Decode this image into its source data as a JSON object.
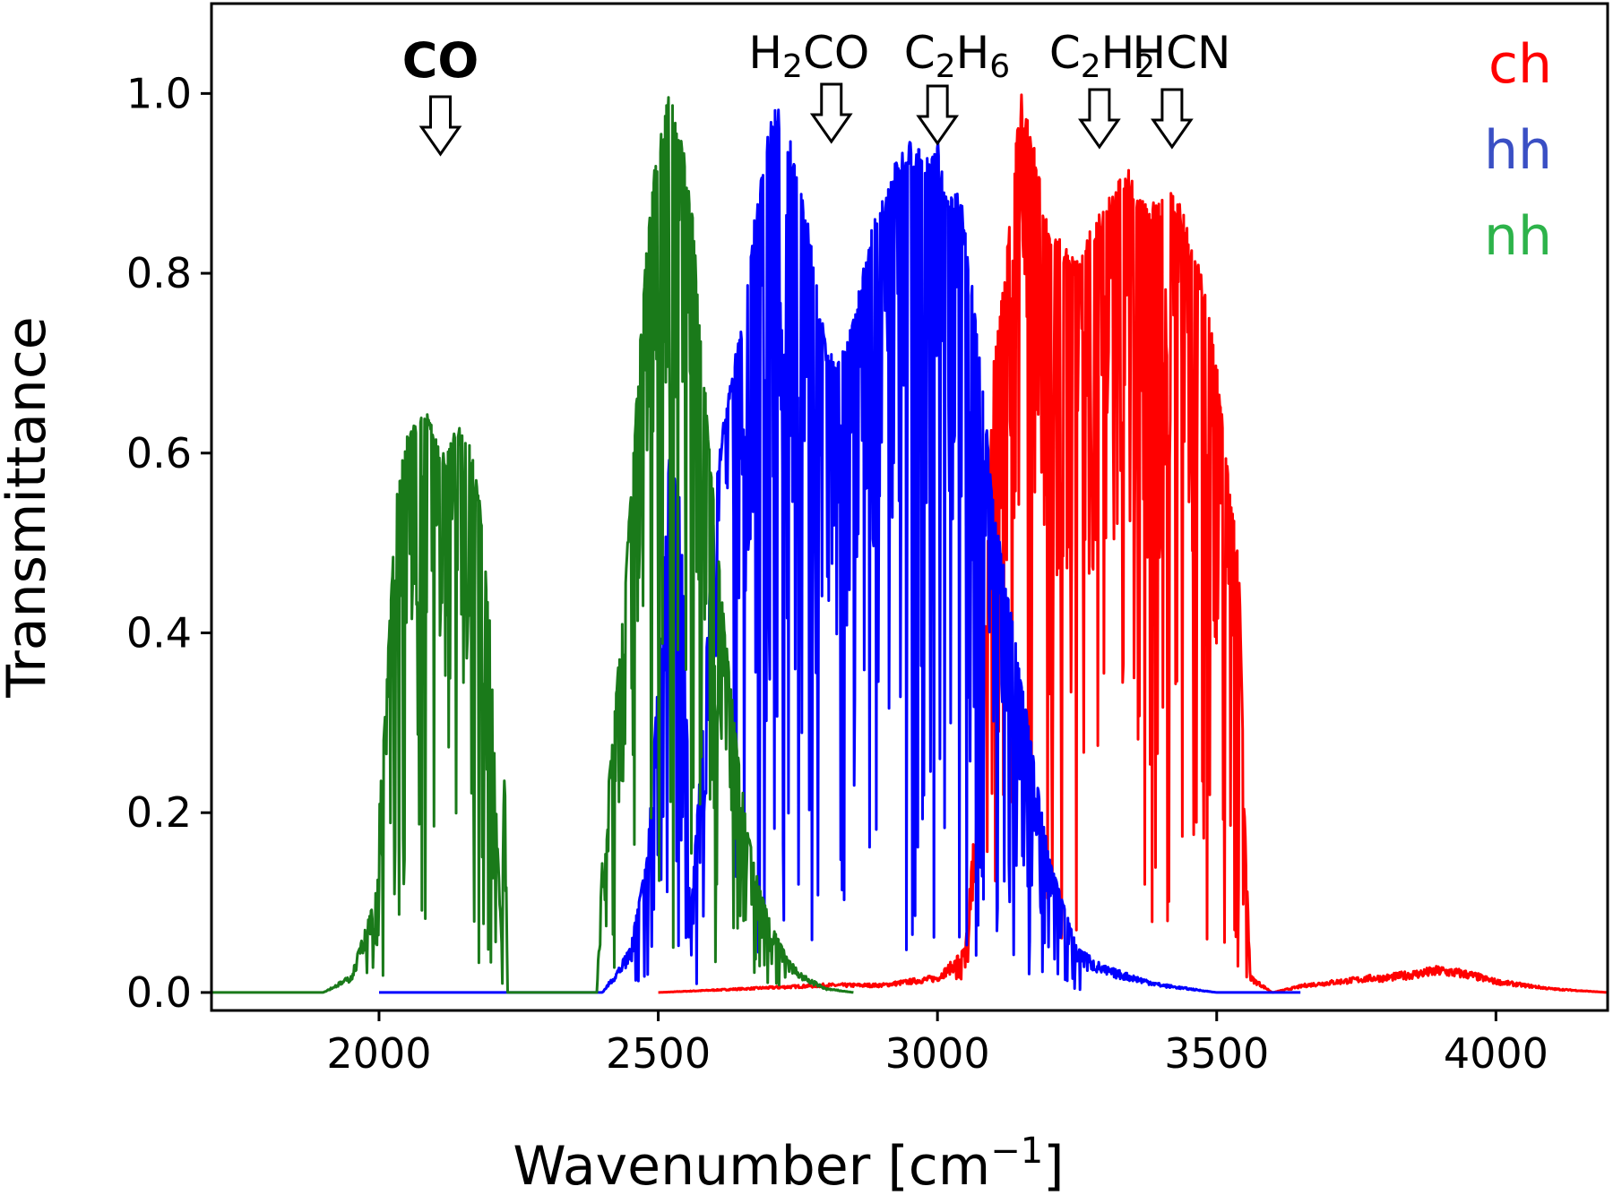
{
  "chart_data": {
    "type": "line",
    "title": "",
    "xlabel_main": "Wavenumber [cm",
    "xlabel_sup": "−1",
    "xlabel_end": "]",
    "ylabel": "Transmittance",
    "xlim": [
      1700,
      4200
    ],
    "ylim": [
      -0.02,
      1.1
    ],
    "x_ticks": [
      2000,
      2500,
      3000,
      3500,
      4000
    ],
    "y_ticks": [
      0.0,
      0.2,
      0.4,
      0.6,
      0.8,
      1.0
    ],
    "y_tick_labels": [
      "0.0",
      "0.2",
      "0.4",
      "0.6",
      "0.8",
      "1.0"
    ],
    "grid": false,
    "legend_position": "top-right",
    "legend": [
      {
        "label": "ch",
        "color": "#ff0000"
      },
      {
        "label": "hh",
        "color": "#3a4fc4"
      },
      {
        "label": "nh",
        "color": "#2db34a"
      }
    ],
    "series": [
      {
        "name": "ch",
        "color": "#ff0000",
        "envelope": [
          [
            2500,
            0.0
          ],
          [
            2800,
            0.01
          ],
          [
            2900,
            0.01
          ],
          [
            3000,
            0.02
          ],
          [
            3050,
            0.05
          ],
          [
            3080,
            0.3
          ],
          [
            3100,
            0.7
          ],
          [
            3120,
            0.8
          ],
          [
            3140,
            0.95
          ],
          [
            3150,
            1.0
          ],
          [
            3170,
            0.95
          ],
          [
            3200,
            0.85
          ],
          [
            3250,
            0.82
          ],
          [
            3300,
            0.88
          ],
          [
            3340,
            0.92
          ],
          [
            3370,
            0.88
          ],
          [
            3400,
            0.88
          ],
          [
            3420,
            0.9
          ],
          [
            3450,
            0.85
          ],
          [
            3480,
            0.78
          ],
          [
            3500,
            0.7
          ],
          [
            3520,
            0.58
          ],
          [
            3540,
            0.48
          ],
          [
            3550,
            0.2
          ],
          [
            3560,
            0.02
          ],
          [
            3600,
            0.0
          ],
          [
            3660,
            0.01
          ],
          [
            3780,
            0.02
          ],
          [
            3800,
            0.02
          ],
          [
            3900,
            0.03
          ],
          [
            3950,
            0.025
          ],
          [
            4000,
            0.015
          ],
          [
            4100,
            0.005
          ],
          [
            4200,
            0.0
          ]
        ]
      },
      {
        "name": "hh",
        "color": "#0000ff",
        "envelope": [
          [
            2000,
            0.0
          ],
          [
            2400,
            0.0
          ],
          [
            2450,
            0.05
          ],
          [
            2480,
            0.15
          ],
          [
            2500,
            0.35
          ],
          [
            2520,
            0.6
          ],
          [
            2540,
            0.55
          ],
          [
            2560,
            0.1
          ],
          [
            2580,
            0.3
          ],
          [
            2600,
            0.55
          ],
          [
            2620,
            0.65
          ],
          [
            2650,
            0.75
          ],
          [
            2680,
            0.9
          ],
          [
            2710,
            1.0
          ],
          [
            2740,
            0.95
          ],
          [
            2770,
            0.85
          ],
          [
            2800,
            0.72
          ],
          [
            2820,
            0.7
          ],
          [
            2850,
            0.75
          ],
          [
            2880,
            0.85
          ],
          [
            2920,
            0.92
          ],
          [
            2950,
            0.95
          ],
          [
            2980,
            0.93
          ],
          [
            3000,
            0.95
          ],
          [
            3020,
            0.88
          ],
          [
            3040,
            0.9
          ],
          [
            3060,
            0.8
          ],
          [
            3080,
            0.68
          ],
          [
            3100,
            0.55
          ],
          [
            3150,
            0.35
          ],
          [
            3200,
            0.15
          ],
          [
            3250,
            0.05
          ],
          [
            3300,
            0.03
          ],
          [
            3400,
            0.01
          ],
          [
            3500,
            0.0
          ],
          [
            3650,
            0.0
          ]
        ]
      },
      {
        "name": "nh",
        "color": "#1a7a1a",
        "envelope": [
          [
            1700,
            0.0
          ],
          [
            1900,
            0.0
          ],
          [
            1950,
            0.02
          ],
          [
            1990,
            0.1
          ],
          [
            2010,
            0.3
          ],
          [
            2030,
            0.55
          ],
          [
            2050,
            0.62
          ],
          [
            2080,
            0.66
          ],
          [
            2100,
            0.62
          ],
          [
            2120,
            0.6
          ],
          [
            2140,
            0.63
          ],
          [
            2160,
            0.62
          ],
          [
            2180,
            0.55
          ],
          [
            2200,
            0.4
          ],
          [
            2210,
            0.2
          ],
          [
            2220,
            0.05
          ],
          [
            2225,
            0.3
          ],
          [
            2230,
            0.0
          ],
          [
            2390,
            0.0
          ],
          [
            2400,
            0.15
          ],
          [
            2420,
            0.3
          ],
          [
            2440,
            0.45
          ],
          [
            2460,
            0.65
          ],
          [
            2480,
            0.85
          ],
          [
            2500,
            0.95
          ],
          [
            2520,
            1.0
          ],
          [
            2540,
            0.97
          ],
          [
            2560,
            0.88
          ],
          [
            2580,
            0.7
          ],
          [
            2600,
            0.55
          ],
          [
            2620,
            0.4
          ],
          [
            2640,
            0.28
          ],
          [
            2660,
            0.18
          ],
          [
            2680,
            0.12
          ],
          [
            2700,
            0.08
          ],
          [
            2730,
            0.04
          ],
          [
            2760,
            0.02
          ],
          [
            2800,
            0.005
          ],
          [
            2850,
            0.0
          ]
        ]
      }
    ],
    "annotations": [
      {
        "label": "CO",
        "x": 2110,
        "bold": true
      },
      {
        "label_main": "H",
        "sub": "2",
        "label_end": "CO",
        "x": 2810
      },
      {
        "label_main": "C",
        "sub": "2",
        "label_mid": "H",
        "sub2": "6",
        "x": 3000
      },
      {
        "label_main": "C",
        "sub": "2",
        "label_mid": "H",
        "sub2": "2",
        "x": 3290
      },
      {
        "label": "HCN",
        "x": 3420
      }
    ]
  }
}
